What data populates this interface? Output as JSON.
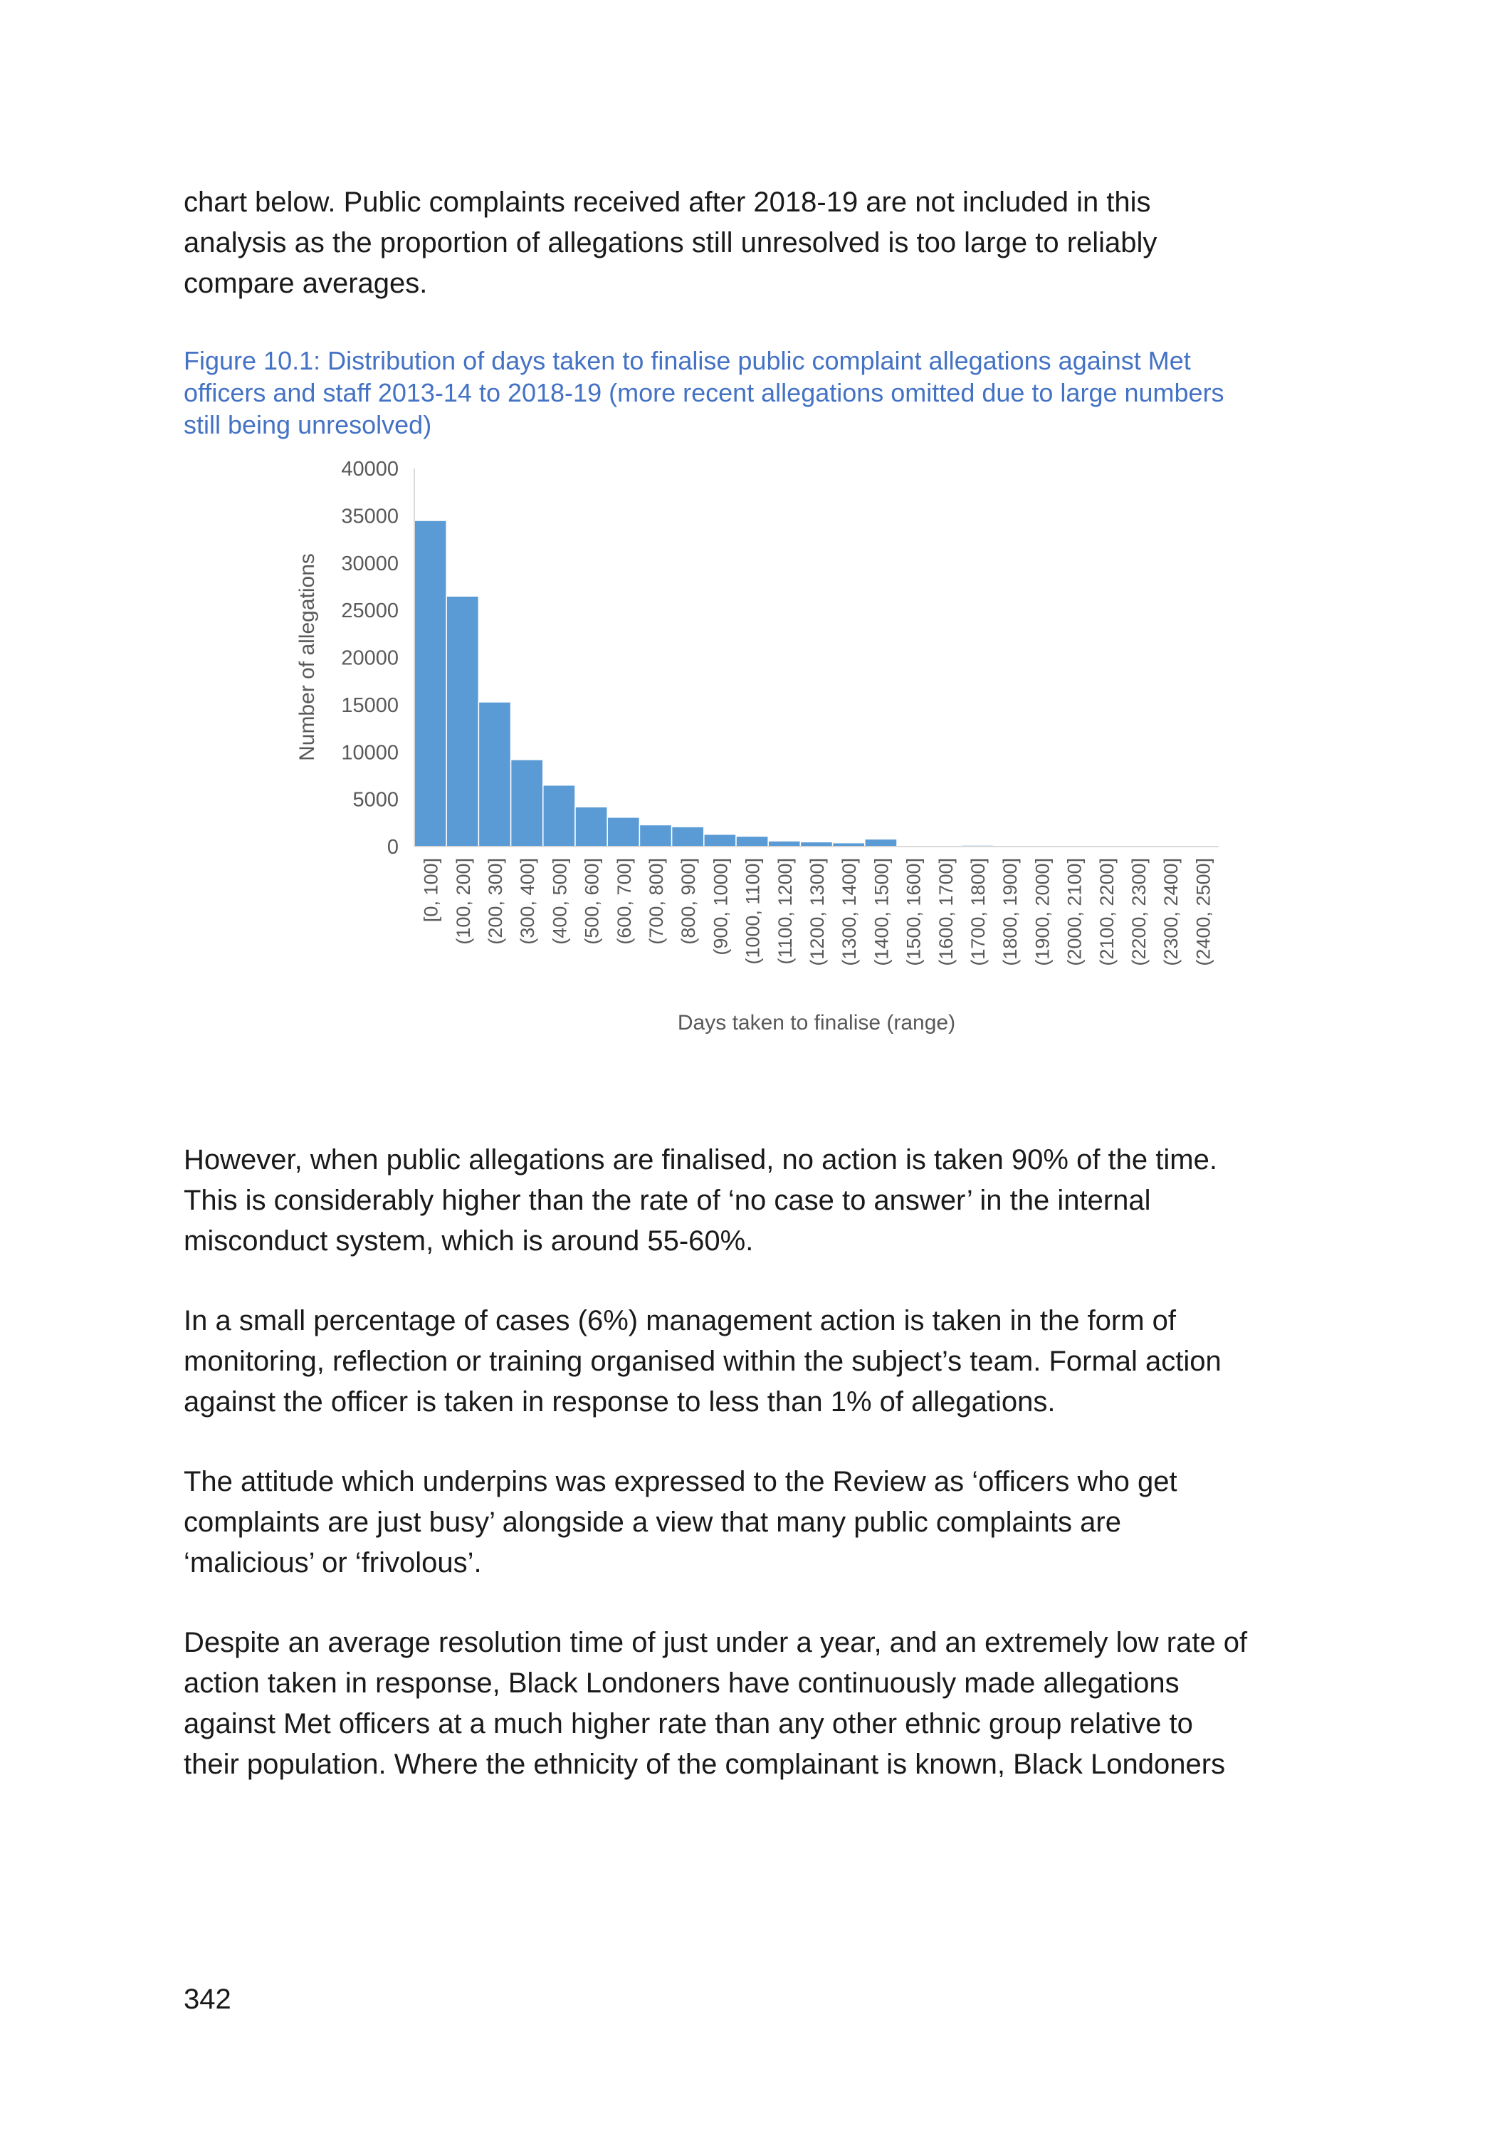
{
  "intro": {
    "lines": [
      "chart below. Public complaints received after 2018-19 are not included in this",
      "analysis as the proportion of allegations still unresolved is too large to reliably",
      "compare averages."
    ]
  },
  "figure": {
    "caption_lines": [
      "Figure 10.1:  Distribution of days taken to finalise public complaint allegations against Met",
      "officers and staff 2013-14 to 2018-19 (more recent allegations omitted due to large numbers",
      "still being unresolved)"
    ]
  },
  "chart_data": {
    "type": "bar",
    "title": "",
    "xlabel": "Days taken to finalise (range)",
    "ylabel": "Number of allegations",
    "ylim": [
      0,
      40000
    ],
    "yticks": [
      0,
      5000,
      10000,
      15000,
      20000,
      25000,
      30000,
      35000,
      40000
    ],
    "grid": false,
    "legend": "none",
    "bar_color": "#5b9bd5",
    "categories": [
      "[0, 100]",
      "(100, 200]",
      "(200, 300]",
      "(300, 400]",
      "(400, 500]",
      "(500, 600]",
      "(600, 700]",
      "(700, 800]",
      "(800, 900]",
      "(900, 1000]",
      "(1000, 1100]",
      "(1100, 1200]",
      "(1200, 1300]",
      "(1300, 1400]",
      "(1400, 1500]",
      "(1500, 1600]",
      "(1600, 1700]",
      "(1700, 1800]",
      "(1800, 1900]",
      "(1900, 2000]",
      "(2000, 2100]",
      "(2100, 2200]",
      "(2200, 2300]",
      "(2300, 2400]",
      "(2400, 2500]"
    ],
    "values": [
      34500,
      26500,
      15300,
      9200,
      6500,
      4200,
      3100,
      2300,
      2100,
      1300,
      1100,
      600,
      500,
      400,
      800,
      50,
      50,
      150,
      50,
      20,
      20,
      20,
      20,
      20,
      20
    ]
  },
  "body": {
    "para1": [
      "However, when public allegations are finalised, no action is taken 90% of the time.",
      "This is considerably higher than the rate of ‘no case to answer’ in the internal",
      "misconduct system, which is around 55-60%."
    ],
    "para2": [
      "In a small percentage of cases (6%) management action is taken in the form of",
      "monitoring, reflection or training organised within the subject’s team. Formal action",
      "against the officer is taken in response to less than 1% of allegations."
    ],
    "para3": [
      "The attitude which underpins was expressed to the Review as ‘officers who get",
      "complaints are just busy’ alongside a view that many public complaints are",
      "‘malicious’ or ‘frivolous’."
    ],
    "para4": [
      "Despite an average resolution time of just under a year, and an extremely low rate of",
      "action taken in response, Black Londoners have continuously made allegations",
      "against Met officers at a much higher rate than any other ethnic group relative to",
      "their population. Where the ethnicity of the complainant is known, Black Londoners"
    ]
  },
  "footer": {
    "page_number": "342"
  }
}
